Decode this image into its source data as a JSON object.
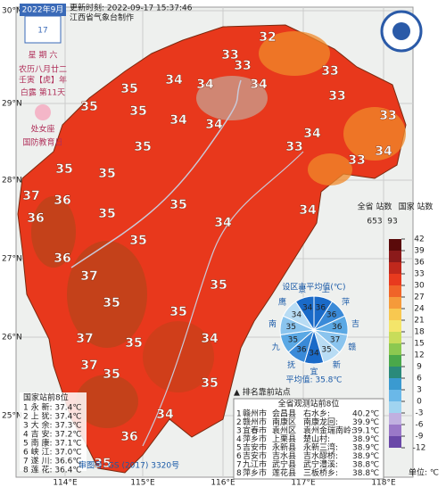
{
  "calendar": {
    "month": "2022年9月",
    "day": "17",
    "weekday": "星 期 六",
    "lunar": "农历八月廿二",
    "year": "壬寅【虎】年",
    "term": "白露 第11天",
    "zodiac": "处女座",
    "festival": "国防教育日"
  },
  "header": {
    "update": "更新时刻: 2022-09-17 15:37:46",
    "producer": "江西省气象台制作"
  },
  "lat_labels": [
    "30°N",
    "29°N",
    "28°N",
    "27°N",
    "26°N",
    "25°N"
  ],
  "lon_labels": [
    "114°E",
    "115°E",
    "116°E",
    "117°E",
    "118°E"
  ],
  "map_labels": [
    32,
    33,
    33,
    34,
    35,
    34,
    34,
    33,
    33,
    35,
    35,
    34,
    34,
    33,
    34,
    33,
    35,
    35,
    35,
    33,
    34,
    37,
    36,
    36,
    35,
    35,
    34,
    35,
    34,
    36,
    37,
    35,
    35,
    35,
    37,
    35,
    34,
    37,
    35,
    35,
    34,
    36,
    35
  ],
  "national_top": {
    "title": "国家站前8位",
    "rows": [
      "1 永 新: 37.4℃",
      "2 上 犹: 37.4℃",
      "3 大 余: 37.3℃",
      "4 吉 安: 37.2℃",
      "5 南 康: 37.1℃",
      "6 峡 江: 37.0℃",
      "7 遂 川: 36.6℃",
      "8 莲 花: 36.4℃"
    ]
  },
  "province_top": {
    "title": "全省观测站前8位",
    "rows": [
      [
        "1",
        "赣州市",
        "会昌县",
        "右水乡:",
        "40.2℃"
      ],
      [
        "2",
        "赣州市",
        "南康区",
        "南康龙回:",
        "39.9℃"
      ],
      [
        "3",
        "宜春市",
        "袁州区",
        "袁州金瑞南岭:",
        "39.1℃"
      ],
      [
        "4",
        "萍乡市",
        "上栗县",
        "楚山村:",
        "38.9℃"
      ],
      [
        "5",
        "吉安市",
        "永新县",
        "永新三湾:",
        "38.9℃"
      ],
      [
        "6",
        "吉安市",
        "吉水县",
        "吉水醪桥:",
        "38.9℃"
      ],
      [
        "7",
        "九江市",
        "武宁县",
        "武宁澧溪:",
        "38.8℃"
      ],
      [
        "8",
        "萍乡市",
        "莲花县",
        "三板桥乡:",
        "38.8℃"
      ]
    ]
  },
  "rank_note": "▲ 排名靠前站点",
  "pie": {
    "title": "设区市平均值(℃)",
    "cities": [
      "上",
      "萍",
      "吉",
      "赣",
      "新",
      "宜",
      "抚",
      "九",
      "南",
      "鹰",
      "景"
    ],
    "values": [
      36,
      36,
      36,
      37,
      35,
      34,
      36,
      35,
      35,
      34,
      34
    ],
    "average": "平均值: 35.8℃"
  },
  "legend": {
    "province_label": "全省\n站数",
    "province_count": 653,
    "national_label": "国家\n站数",
    "national_count": 93,
    "ticks": [
      42,
      39,
      36,
      33,
      30,
      27,
      24,
      21,
      18,
      15,
      12,
      9,
      6,
      3,
      0,
      -3,
      -6,
      -9,
      -12
    ],
    "colors": [
      "#5a0a0a",
      "#8b1a1a",
      "#c0281c",
      "#e83a1e",
      "#f06428",
      "#f59a3a",
      "#f8c850",
      "#f4e56a",
      "#c8dc5a",
      "#8cc850",
      "#4aa84a",
      "#2a8a7a",
      "#3a9ad0",
      "#6ab8e8",
      "#a0d4f0",
      "#c0b0e0",
      "#9a78c8",
      "#6a48a8"
    ],
    "unit": "单位: ℃"
  },
  "approval": "审图号: GS (2017) 3320号"
}
